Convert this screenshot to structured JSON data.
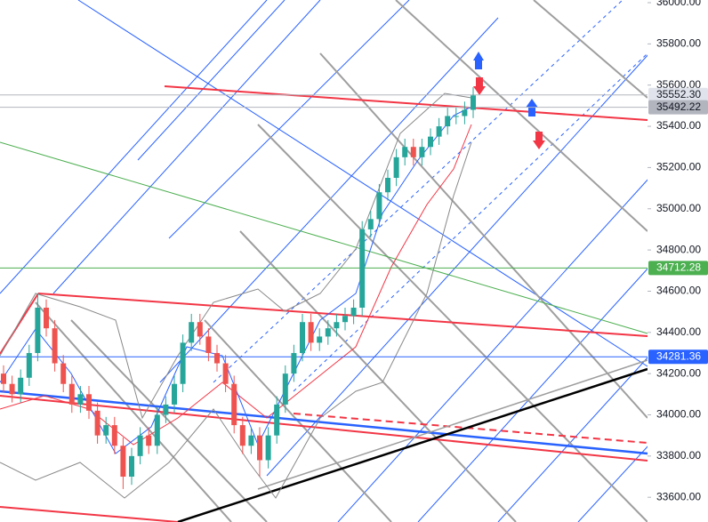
{
  "chart_data": {
    "type": "candlestick",
    "open": [
      34200,
      34150,
      34100,
      34180,
      34300,
      34520,
      34420,
      34250,
      34150,
      34050,
      34100,
      34020,
      33900,
      33950,
      33850,
      33700,
      33800,
      33900,
      33850,
      34000,
      34050,
      34150,
      34350,
      34450,
      34380,
      34300,
      34250,
      34150,
      33950,
      33850,
      33900,
      33780,
      33900,
      34050,
      34200,
      34300,
      34450,
      34350,
      34380,
      34420,
      34450,
      34480,
      34520,
      34900,
      34950,
      35080,
      35150,
      35250,
      35300,
      35250,
      35300,
      35350,
      35400,
      35450,
      35450,
      35480
    ],
    "high": [
      34240,
      34190,
      34220,
      34340,
      34590,
      34560,
      34460,
      34290,
      34190,
      34140,
      34140,
      34060,
      33990,
      33990,
      33890,
      33840,
      33940,
      33940,
      34040,
      34090,
      34190,
      34390,
      34490,
      34490,
      34420,
      34340,
      34290,
      34190,
      33990,
      33940,
      33940,
      33940,
      34090,
      34240,
      34340,
      34490,
      34490,
      34420,
      34460,
      34490,
      34520,
      34560,
      34940,
      34990,
      35120,
      35190,
      35290,
      35340,
      35340,
      35340,
      35390,
      35440,
      35490,
      35490,
      35520,
      35590
    ],
    "low": [
      34110,
      34060,
      34060,
      34140,
      34260,
      34380,
      34210,
      34110,
      34010,
      34010,
      33980,
      33860,
      33860,
      33810,
      33640,
      33660,
      33760,
      33810,
      33810,
      33960,
      34010,
      34110,
      34310,
      34340,
      34260,
      34210,
      34110,
      33910,
      33810,
      33810,
      33700,
      33740,
      33860,
      34010,
      34160,
      34260,
      34310,
      34310,
      34340,
      34380,
      34410,
      34440,
      34480,
      34860,
      34910,
      35040,
      35110,
      35210,
      35210,
      35210,
      35260,
      35310,
      35360,
      35410,
      35410,
      35440
    ],
    "close": [
      34150,
      34100,
      34180,
      34300,
      34520,
      34420,
      34250,
      34150,
      34050,
      34100,
      34020,
      33900,
      33950,
      33850,
      33700,
      33800,
      33900,
      33850,
      34000,
      34050,
      34150,
      34350,
      34450,
      34380,
      34300,
      34250,
      34150,
      33950,
      33850,
      33900,
      33780,
      33900,
      34050,
      34200,
      34300,
      34450,
      34350,
      34380,
      34420,
      34450,
      34480,
      34520,
      34900,
      34950,
      35080,
      35150,
      35250,
      35300,
      35250,
      35300,
      35350,
      35400,
      35450,
      35450,
      35480,
      35550
    ],
    "up_color": "#26a69a",
    "down_color": "#ef5350",
    "ylim": [
      33480,
      36013
    ],
    "yticks": [
      {
        "value": 33600,
        "label": "33600.00"
      },
      {
        "value": 33800,
        "label": "33800.00"
      },
      {
        "value": 34000,
        "label": "34000.00"
      },
      {
        "value": 34200,
        "label": "34200.00"
      },
      {
        "value": 34400,
        "label": "34400.00"
      },
      {
        "value": 34600,
        "label": "34600.00"
      },
      {
        "value": 34800,
        "label": "34800.00"
      },
      {
        "value": 35000,
        "label": "35000.00"
      },
      {
        "value": 35200,
        "label": "35200.00"
      },
      {
        "value": 35400,
        "label": "35400.00"
      },
      {
        "value": 35600,
        "label": "35600.00"
      },
      {
        "value": 35800,
        "label": "35800.00"
      },
      {
        "value": 36000,
        "label": "36000.00"
      }
    ],
    "price_tags": [
      {
        "value": 35552.3,
        "label": "35552.30",
        "color": "#e0e3eb",
        "text_color": "#131722"
      },
      {
        "value": 35492.22,
        "label": "35492.22",
        "color": "#b2b5be",
        "text_color": "#131722"
      },
      {
        "value": 34712.28,
        "label": "34712.28",
        "color": "#4caf50",
        "text_color": "#ffffff"
      },
      {
        "value": 34281.36,
        "label": "34281.36",
        "color": "#2962ff",
        "text_color": "#ffffff"
      }
    ]
  }
}
